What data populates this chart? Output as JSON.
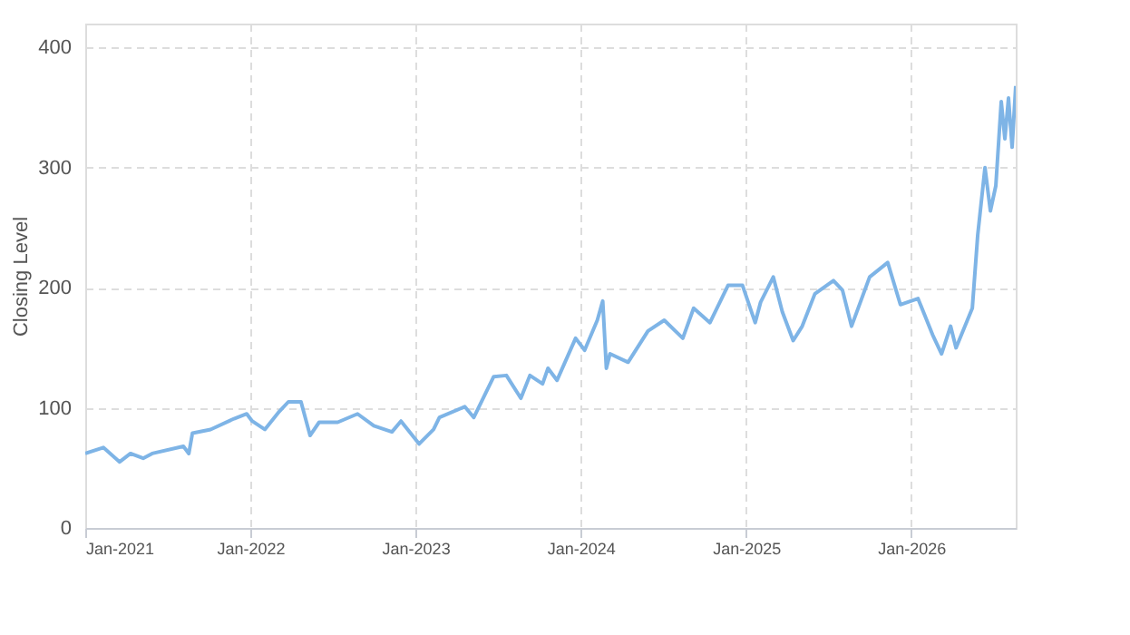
{
  "chart_data": {
    "type": "line",
    "ylabel": "Closing Level",
    "grid": true,
    "marker": "none",
    "line_style": "solid",
    "xlim": [
      "2021-01-01",
      "2026-08-20"
    ],
    "xticks": [
      {
        "value": "2021-01-01",
        "label": "Jan-2021"
      },
      {
        "value": "2022-01-01",
        "label": "Jan-2022"
      },
      {
        "value": "2023-01-01",
        "label": "Jan-2023"
      },
      {
        "value": "2024-01-01",
        "label": "Jan-2024"
      },
      {
        "value": "2025-01-01",
        "label": "Jan-2025"
      },
      {
        "value": "2026-01-01",
        "label": "Jan-2026"
      }
    ],
    "ylim": [
      0,
      420
    ],
    "yticks": [
      0,
      100,
      200,
      300,
      400
    ],
    "x": [
      "2021-01-01",
      "2021-02-10",
      "2021-03-18",
      "2021-04-11",
      "2021-05-09",
      "2021-05-29",
      "2021-08-06",
      "2021-08-18",
      "2021-08-26",
      "2021-10-05",
      "2021-11-26",
      "2021-12-24",
      "2022-01-05",
      "2022-02-02",
      "2022-03-06",
      "2022-03-26",
      "2022-04-23",
      "2022-05-13",
      "2022-06-02",
      "2022-07-13",
      "2022-08-26",
      "2022-10-01",
      "2022-11-10",
      "2022-11-30",
      "2023-01-09",
      "2023-02-10",
      "2023-02-23",
      "2023-04-20",
      "2023-05-10",
      "2023-06-23",
      "2023-07-21",
      "2023-08-22",
      "2023-09-11",
      "2023-10-09",
      "2023-10-21",
      "2023-11-10",
      "2023-12-21",
      "2024-01-10",
      "2024-02-07",
      "2024-02-19",
      "2024-02-27",
      "2024-03-06",
      "2024-04-15",
      "2024-05-29",
      "2024-07-04",
      "2024-08-14",
      "2024-09-07",
      "2024-10-13",
      "2024-11-22",
      "2024-12-24",
      "2025-01-21",
      "2025-02-02",
      "2025-03-02",
      "2025-03-22",
      "2025-04-15",
      "2025-05-05",
      "2025-06-02",
      "2025-07-13",
      "2025-08-02",
      "2025-08-22",
      "2025-10-01",
      "2025-11-10",
      "2025-12-08",
      "2026-01-16",
      "2026-02-17",
      "2026-03-09",
      "2026-03-29",
      "2026-04-10",
      "2026-05-16",
      "2026-05-28",
      "2026-06-13",
      "2026-06-25",
      "2026-07-07",
      "2026-07-19",
      "2026-07-27",
      "2026-08-04",
      "2026-08-12",
      "2026-08-20"
    ],
    "series": [
      {
        "color": "#7eb4e6",
        "values": [
          62,
          67,
          55,
          62,
          58,
          62,
          68,
          62,
          79,
          82,
          91,
          95,
          89,
          82,
          97,
          105,
          105,
          77,
          88,
          88,
          95,
          85,
          80,
          89,
          70,
          82,
          92,
          101,
          92,
          126,
          127,
          108,
          127,
          120,
          133,
          123,
          158,
          148,
          173,
          189,
          133,
          145,
          138,
          164,
          173,
          158,
          183,
          171,
          202,
          202,
          171,
          188,
          209,
          180,
          156,
          168,
          195,
          206,
          198,
          168,
          209,
          221,
          186,
          191,
          161,
          145,
          168,
          150,
          183,
          244,
          300,
          264,
          285,
          355,
          324,
          358,
          317,
          368
        ]
      }
    ]
  }
}
